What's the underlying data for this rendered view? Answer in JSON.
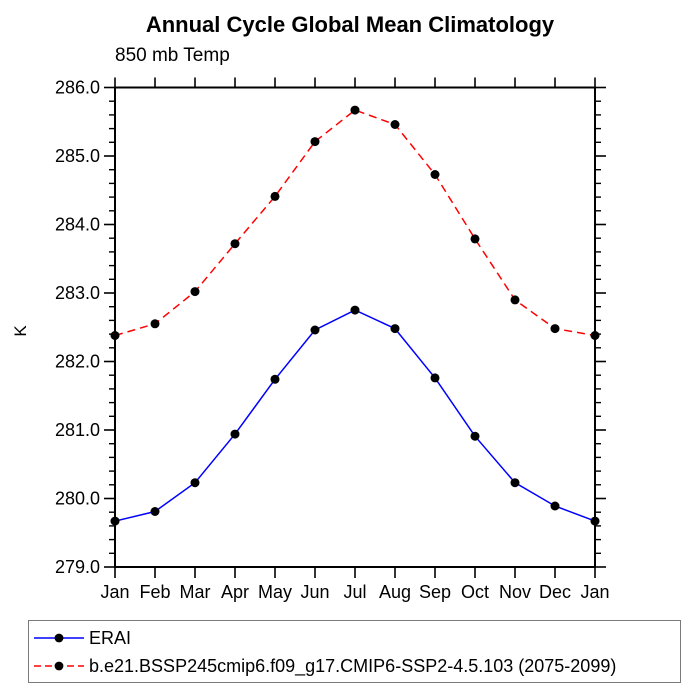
{
  "page": {
    "title": "Annual Cycle Global Mean Climatology",
    "subtitle": "850 mb Temp",
    "ylabel": "K"
  },
  "chart_data": {
    "type": "line",
    "title": "Annual Cycle Global Mean Climatology",
    "subtitle": "850 mb Temp",
    "xlabel": "",
    "ylabel": "K",
    "categories": [
      "Jan",
      "Feb",
      "Mar",
      "Apr",
      "May",
      "Jun",
      "Jul",
      "Aug",
      "Sep",
      "Oct",
      "Nov",
      "Dec",
      "Jan"
    ],
    "ylim": [
      279.0,
      286.0
    ],
    "ytick_interval": 1.0,
    "ytick_minor_interval": 0.2,
    "ytick_labels": [
      "279.0",
      "280.0",
      "281.0",
      "282.0",
      "283.0",
      "284.0",
      "285.0",
      "286.0"
    ],
    "grid": false,
    "legend_position": "bottom-left",
    "axis_color": "#000000",
    "series": [
      {
        "name": "ERAI",
        "color": "#0000ff",
        "line_style": "solid",
        "marker": "filled-circle",
        "marker_color": "#000000",
        "values": [
          279.67,
          279.81,
          280.23,
          280.94,
          281.74,
          282.46,
          282.75,
          282.48,
          281.76,
          280.91,
          280.23,
          279.89,
          279.67
        ]
      },
      {
        "name": "b.e21.BSSP245cmip6.f09_g17.CMIP6-SSP2-4.5.103 (2075-2099)",
        "color": "#ff0000",
        "line_style": "dashed",
        "marker": "filled-circle",
        "marker_color": "#000000",
        "values": [
          282.38,
          282.55,
          283.02,
          283.72,
          284.41,
          285.21,
          285.67,
          285.46,
          284.73,
          283.79,
          282.9,
          282.48,
          282.38
        ]
      }
    ]
  }
}
